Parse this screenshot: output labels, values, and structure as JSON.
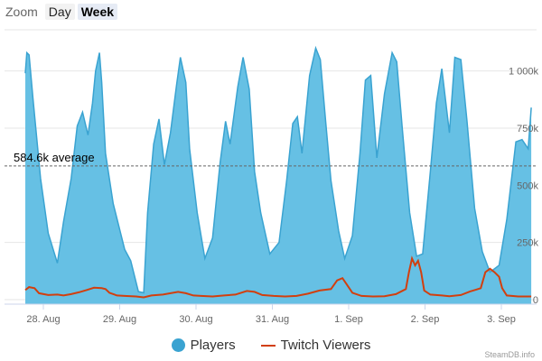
{
  "zoom": {
    "label": "Zoom",
    "buttons": [
      {
        "label": "Day",
        "active": false
      },
      {
        "label": "Week",
        "active": true
      }
    ]
  },
  "credit": "SteamDB.info",
  "colors": {
    "players_fill": "#66c0e4",
    "players_line": "#3aa3d1",
    "twitch": "#d23f0e",
    "grid": "#e6e6e6",
    "average_line": "#666666"
  },
  "chart_data": {
    "type": "area",
    "x_tick_labels": [
      "28. Aug",
      "29. Aug",
      "30. Aug",
      "31. Aug",
      "1. Sep",
      "2. Sep",
      "3. Sep"
    ],
    "y_tick_labels": [
      "0",
      "250k",
      "500k",
      "750k",
      "1 000k"
    ],
    "ylim": [
      0,
      1200000
    ],
    "average": {
      "value": 584600,
      "label": "584.6k average"
    },
    "legend": [
      {
        "name": "Players",
        "marker": "circle"
      },
      {
        "name": "Twitch Viewers",
        "marker": "line"
      }
    ],
    "x_range_days": [
      0,
      7.0
    ],
    "players_points": [
      [
        0.0,
        990000
      ],
      [
        0.02,
        1080000
      ],
      [
        0.05,
        1070000
      ],
      [
        0.1,
        880000
      ],
      [
        0.2,
        530000
      ],
      [
        0.3,
        290000
      ],
      [
        0.42,
        160000
      ],
      [
        0.5,
        340000
      ],
      [
        0.6,
        530000
      ],
      [
        0.68,
        760000
      ],
      [
        0.75,
        820000
      ],
      [
        0.82,
        720000
      ],
      [
        0.88,
        860000
      ],
      [
        0.92,
        1000000
      ],
      [
        0.97,
        1080000
      ],
      [
        1.0,
        950000
      ],
      [
        1.05,
        640000
      ],
      [
        1.15,
        420000
      ],
      [
        1.3,
        220000
      ],
      [
        1.38,
        170000
      ],
      [
        1.48,
        35000
      ],
      [
        1.55,
        30000
      ],
      [
        1.6,
        380000
      ],
      [
        1.68,
        680000
      ],
      [
        1.75,
        790000
      ],
      [
        1.82,
        590000
      ],
      [
        1.9,
        730000
      ],
      [
        1.98,
        940000
      ],
      [
        2.03,
        1060000
      ],
      [
        2.1,
        950000
      ],
      [
        2.15,
        660000
      ],
      [
        2.25,
        380000
      ],
      [
        2.35,
        180000
      ],
      [
        2.45,
        270000
      ],
      [
        2.55,
        600000
      ],
      [
        2.62,
        780000
      ],
      [
        2.68,
        680000
      ],
      [
        2.78,
        930000
      ],
      [
        2.85,
        1060000
      ],
      [
        2.93,
        920000
      ],
      [
        3.0,
        560000
      ],
      [
        3.08,
        380000
      ],
      [
        3.2,
        200000
      ],
      [
        3.32,
        250000
      ],
      [
        3.42,
        520000
      ],
      [
        3.5,
        770000
      ],
      [
        3.56,
        800000
      ],
      [
        3.62,
        640000
      ],
      [
        3.72,
        980000
      ],
      [
        3.8,
        1100000
      ],
      [
        3.86,
        1050000
      ],
      [
        3.93,
        780000
      ],
      [
        4.0,
        520000
      ],
      [
        4.1,
        300000
      ],
      [
        4.18,
        180000
      ],
      [
        4.28,
        280000
      ],
      [
        4.38,
        640000
      ],
      [
        4.45,
        960000
      ],
      [
        4.52,
        980000
      ],
      [
        4.6,
        620000
      ],
      [
        4.7,
        900000
      ],
      [
        4.8,
        1080000
      ],
      [
        4.86,
        1040000
      ],
      [
        4.93,
        760000
      ],
      [
        5.03,
        380000
      ],
      [
        5.12,
        190000
      ],
      [
        5.2,
        200000
      ],
      [
        5.3,
        560000
      ],
      [
        5.38,
        860000
      ],
      [
        5.45,
        1010000
      ],
      [
        5.55,
        730000
      ],
      [
        5.62,
        1060000
      ],
      [
        5.7,
        1050000
      ],
      [
        5.78,
        780000
      ],
      [
        5.88,
        400000
      ],
      [
        5.98,
        210000
      ],
      [
        6.08,
        120000
      ],
      [
        6.2,
        150000
      ],
      [
        6.3,
        350000
      ],
      [
        6.42,
        690000
      ],
      [
        6.5,
        700000
      ],
      [
        6.58,
        660000
      ],
      [
        6.62,
        840000
      ]
    ],
    "twitch_points": [
      [
        0.0,
        42000
      ],
      [
        0.05,
        55000
      ],
      [
        0.12,
        50000
      ],
      [
        0.18,
        28000
      ],
      [
        0.3,
        20000
      ],
      [
        0.42,
        22000
      ],
      [
        0.5,
        18000
      ],
      [
        0.6,
        24000
      ],
      [
        0.7,
        32000
      ],
      [
        0.8,
        42000
      ],
      [
        0.9,
        52000
      ],
      [
        1.0,
        50000
      ],
      [
        1.05,
        46000
      ],
      [
        1.1,
        30000
      ],
      [
        1.2,
        18000
      ],
      [
        1.3,
        16000
      ],
      [
        1.45,
        14000
      ],
      [
        1.55,
        10000
      ],
      [
        1.65,
        18000
      ],
      [
        1.8,
        22000
      ],
      [
        2.0,
        34000
      ],
      [
        2.1,
        28000
      ],
      [
        2.2,
        18000
      ],
      [
        2.3,
        16000
      ],
      [
        2.45,
        14000
      ],
      [
        2.6,
        18000
      ],
      [
        2.75,
        22000
      ],
      [
        2.9,
        38000
      ],
      [
        3.0,
        34000
      ],
      [
        3.1,
        20000
      ],
      [
        3.25,
        16000
      ],
      [
        3.4,
        14000
      ],
      [
        3.55,
        16000
      ],
      [
        3.7,
        26000
      ],
      [
        3.85,
        40000
      ],
      [
        4.0,
        46000
      ],
      [
        4.08,
        84000
      ],
      [
        4.15,
        94000
      ],
      [
        4.2,
        70000
      ],
      [
        4.28,
        30000
      ],
      [
        4.4,
        16000
      ],
      [
        4.55,
        14000
      ],
      [
        4.7,
        15000
      ],
      [
        4.85,
        24000
      ],
      [
        4.98,
        46000
      ],
      [
        5.02,
        120000
      ],
      [
        5.06,
        180000
      ],
      [
        5.1,
        150000
      ],
      [
        5.14,
        170000
      ],
      [
        5.18,
        120000
      ],
      [
        5.22,
        40000
      ],
      [
        5.3,
        22000
      ],
      [
        5.45,
        18000
      ],
      [
        5.55,
        15000
      ],
      [
        5.7,
        20000
      ],
      [
        5.82,
        36000
      ],
      [
        5.9,
        44000
      ],
      [
        5.96,
        50000
      ],
      [
        6.02,
        120000
      ],
      [
        6.08,
        135000
      ],
      [
        6.14,
        120000
      ],
      [
        6.2,
        100000
      ],
      [
        6.24,
        50000
      ],
      [
        6.3,
        18000
      ],
      [
        6.45,
        14000
      ],
      [
        6.62,
        14000
      ]
    ]
  }
}
